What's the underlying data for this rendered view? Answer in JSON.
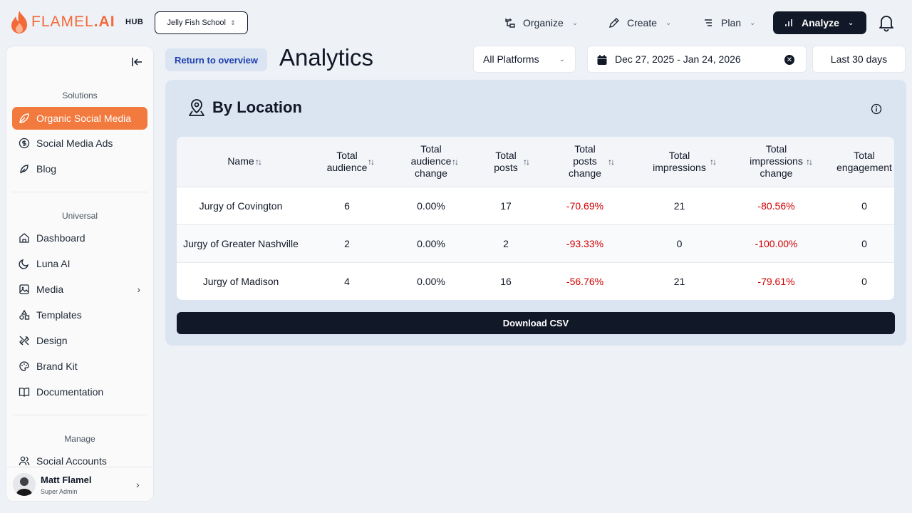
{
  "brand": {
    "name_light": "FLAMEL",
    "name_bold": ".AI",
    "hub_label": "HUB",
    "accent": "#f27a3e"
  },
  "workspace": {
    "selected": "Jelly Fish School"
  },
  "topnav": {
    "items": [
      {
        "label": "Organize",
        "icon": "organize-icon"
      },
      {
        "label": "Create",
        "icon": "pencil-icon"
      },
      {
        "label": "Plan",
        "icon": "plan-icon"
      },
      {
        "label": "Analyze",
        "icon": "chart-icon",
        "active": true
      }
    ]
  },
  "sidebar": {
    "sections": [
      {
        "label": "Solutions"
      },
      {
        "label": "Universal"
      },
      {
        "label": "Manage"
      }
    ],
    "items": [
      {
        "label": "Organic Social Media",
        "icon": "leaf-icon",
        "active": true
      },
      {
        "label": "Social Media Ads",
        "icon": "dollar-icon"
      },
      {
        "label": "Blog",
        "icon": "feather-icon"
      },
      {
        "label": "Dashboard",
        "icon": "home-icon"
      },
      {
        "label": "Luna AI",
        "icon": "moon-icon"
      },
      {
        "label": "Media",
        "icon": "image-icon"
      },
      {
        "label": "Templates",
        "icon": "shapes-icon"
      },
      {
        "label": "Design",
        "icon": "design-icon"
      },
      {
        "label": "Brand Kit",
        "icon": "palette-icon"
      },
      {
        "label": "Documentation",
        "icon": "book-icon"
      },
      {
        "label": "Social Accounts",
        "icon": "users-icon"
      }
    ],
    "user": {
      "name": "Matt Flamel",
      "role": "Super Admin"
    }
  },
  "header": {
    "return_label": "Return to overview",
    "title": "Analytics",
    "platform": "All Platforms",
    "date_range": "Dec 27, 2025 - Jan 24, 2026",
    "period": "Last 30 days"
  },
  "card": {
    "title": "By Location",
    "columns": [
      "Name",
      "Total audience",
      "Total audience change",
      "Total posts",
      "Total posts change",
      "Total impressions",
      "Total impressions change",
      "Total engagement"
    ],
    "rows": [
      {
        "name": "Jurgy of Covington",
        "audience": "6",
        "audience_change": "0.00%",
        "posts": "17",
        "posts_change": "-70.69%",
        "impressions": "21",
        "impressions_change": "-80.56%",
        "engagement": "0"
      },
      {
        "name": "Jurgy of Greater Nashville",
        "audience": "2",
        "audience_change": "0.00%",
        "posts": "2",
        "posts_change": "-93.33%",
        "impressions": "0",
        "impressions_change": "-100.00%",
        "engagement": "0"
      },
      {
        "name": "Jurgy of Madison",
        "audience": "4",
        "audience_change": "0.00%",
        "posts": "16",
        "posts_change": "-56.76%",
        "impressions": "21",
        "impressions_change": "-79.61%",
        "engagement": "0"
      }
    ],
    "download_label": "Download CSV"
  }
}
